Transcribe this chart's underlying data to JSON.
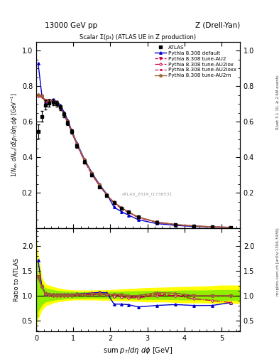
{
  "title_top": "13000 GeV pp",
  "title_right": "Z (Drell-Yan)",
  "plot_title": "Scalar Σ(pₜ) (ATLAS UE in Z production)",
  "watermark": "ATLAS_2019_I1736531",
  "right_label": "Rivet 3.1.10, ≥ 2.6M events",
  "right_label2": "mcplots.cern.ch [arXiv:1306.3436]",
  "xlim": [
    0,
    5.5
  ],
  "ylim_main": [
    0,
    1.05
  ],
  "ylim_ratio": [
    0.28,
    2.35
  ],
  "yticks_main": [
    0.2,
    0.4,
    0.6,
    0.8,
    1.0
  ],
  "yticks_ratio": [
    0.5,
    1.0,
    1.5,
    2.0
  ],
  "atlas_x": [
    0.05,
    0.15,
    0.25,
    0.35,
    0.45,
    0.55,
    0.65,
    0.75,
    0.85,
    0.95,
    1.1,
    1.3,
    1.5,
    1.7,
    1.9,
    2.1,
    2.3,
    2.5,
    2.75,
    3.25,
    3.75,
    4.25,
    4.75,
    5.25
  ],
  "atlas_y": [
    0.545,
    0.63,
    0.695,
    0.705,
    0.71,
    0.7,
    0.68,
    0.64,
    0.595,
    0.545,
    0.465,
    0.375,
    0.3,
    0.235,
    0.185,
    0.145,
    0.115,
    0.092,
    0.065,
    0.035,
    0.022,
    0.015,
    0.01,
    0.007
  ],
  "atlas_yerr": [
    0.04,
    0.03,
    0.025,
    0.02,
    0.018,
    0.016,
    0.015,
    0.013,
    0.012,
    0.011,
    0.01,
    0.009,
    0.008,
    0.007,
    0.006,
    0.005,
    0.004,
    0.003,
    0.002,
    0.0015,
    0.001,
    0.0008,
    0.0006,
    0.0005
  ],
  "default_x": [
    0.05,
    0.15,
    0.25,
    0.35,
    0.45,
    0.55,
    0.65,
    0.75,
    0.85,
    0.95,
    1.1,
    1.3,
    1.5,
    1.7,
    1.9,
    2.1,
    2.3,
    2.5,
    2.75,
    3.25,
    3.75,
    4.25,
    4.75,
    5.25
  ],
  "default_y": [
    0.93,
    0.75,
    0.715,
    0.72,
    0.725,
    0.715,
    0.695,
    0.655,
    0.61,
    0.555,
    0.48,
    0.39,
    0.315,
    0.25,
    0.195,
    0.12,
    0.095,
    0.075,
    0.05,
    0.028,
    0.018,
    0.012,
    0.008,
    0.006
  ],
  "au2_x": [
    0.05,
    0.15,
    0.25,
    0.35,
    0.45,
    0.55,
    0.65,
    0.75,
    0.85,
    0.95,
    1.1,
    1.3,
    1.5,
    1.7,
    1.9,
    2.1,
    2.3,
    2.5,
    2.75,
    3.25,
    3.75,
    4.25,
    4.75,
    5.25
  ],
  "au2_y": [
    0.75,
    0.745,
    0.72,
    0.72,
    0.715,
    0.705,
    0.685,
    0.645,
    0.6,
    0.55,
    0.475,
    0.385,
    0.31,
    0.245,
    0.19,
    0.145,
    0.115,
    0.09,
    0.063,
    0.036,
    0.022,
    0.015,
    0.01,
    0.007
  ],
  "au2lox_x": [
    0.05,
    0.15,
    0.25,
    0.35,
    0.45,
    0.55,
    0.65,
    0.75,
    0.85,
    0.95,
    1.1,
    1.3,
    1.5,
    1.7,
    1.9,
    2.1,
    2.3,
    2.5,
    2.75,
    3.25,
    3.75,
    4.25,
    4.75,
    5.25
  ],
  "au2lox_y": [
    0.745,
    0.74,
    0.715,
    0.715,
    0.71,
    0.7,
    0.68,
    0.64,
    0.595,
    0.545,
    0.47,
    0.38,
    0.305,
    0.242,
    0.188,
    0.143,
    0.112,
    0.088,
    0.062,
    0.035,
    0.022,
    0.014,
    0.009,
    0.006
  ],
  "au2loxx_x": [
    0.05,
    0.15,
    0.25,
    0.35,
    0.45,
    0.55,
    0.65,
    0.75,
    0.85,
    0.95,
    1.1,
    1.3,
    1.5,
    1.7,
    1.9,
    2.1,
    2.3,
    2.5,
    2.75,
    3.25,
    3.75,
    4.25,
    4.75,
    5.25
  ],
  "au2loxx_y": [
    0.745,
    0.74,
    0.715,
    0.715,
    0.71,
    0.7,
    0.68,
    0.64,
    0.595,
    0.545,
    0.47,
    0.38,
    0.305,
    0.242,
    0.188,
    0.148,
    0.118,
    0.092,
    0.065,
    0.037,
    0.023,
    0.015,
    0.01,
    0.007
  ],
  "au2m_x": [
    0.05,
    0.15,
    0.25,
    0.35,
    0.45,
    0.55,
    0.65,
    0.75,
    0.85,
    0.95,
    1.1,
    1.3,
    1.5,
    1.7,
    1.9,
    2.1,
    2.3,
    2.5,
    2.75,
    3.25,
    3.75,
    4.25,
    4.75,
    5.25
  ],
  "au2m_y": [
    0.755,
    0.745,
    0.72,
    0.72,
    0.715,
    0.705,
    0.685,
    0.645,
    0.6,
    0.55,
    0.475,
    0.385,
    0.31,
    0.245,
    0.19,
    0.148,
    0.118,
    0.092,
    0.065,
    0.037,
    0.023,
    0.015,
    0.01,
    0.007
  ],
  "color_default": "#0000cc",
  "color_au2": "#cc0044",
  "color_au2lox": "#cc0044",
  "color_au2loxx": "#cc0044",
  "color_au2m": "#996633",
  "yellow_band_x": [
    0.0,
    0.05,
    0.15,
    0.25,
    0.5,
    0.75,
    1.0,
    1.5,
    2.0,
    2.5,
    3.0,
    3.5,
    4.0,
    4.5,
    5.0,
    5.5
  ],
  "yellow_band_lo": [
    0.4,
    0.55,
    0.72,
    0.8,
    0.87,
    0.9,
    0.92,
    0.92,
    0.91,
    0.9,
    0.88,
    0.88,
    0.86,
    0.86,
    0.85,
    0.85
  ],
  "yellow_band_hi": [
    2.1,
    1.8,
    1.35,
    1.22,
    1.16,
    1.12,
    1.1,
    1.1,
    1.11,
    1.13,
    1.15,
    1.16,
    1.17,
    1.18,
    1.2,
    1.2
  ],
  "green_band_lo": [
    0.5,
    0.7,
    0.82,
    0.88,
    0.92,
    0.94,
    0.95,
    0.96,
    0.95,
    0.94,
    0.93,
    0.93,
    0.92,
    0.92,
    0.91,
    0.91
  ],
  "green_band_hi": [
    1.7,
    1.4,
    1.2,
    1.14,
    1.1,
    1.08,
    1.07,
    1.06,
    1.07,
    1.08,
    1.09,
    1.09,
    1.1,
    1.1,
    1.11,
    1.11
  ]
}
